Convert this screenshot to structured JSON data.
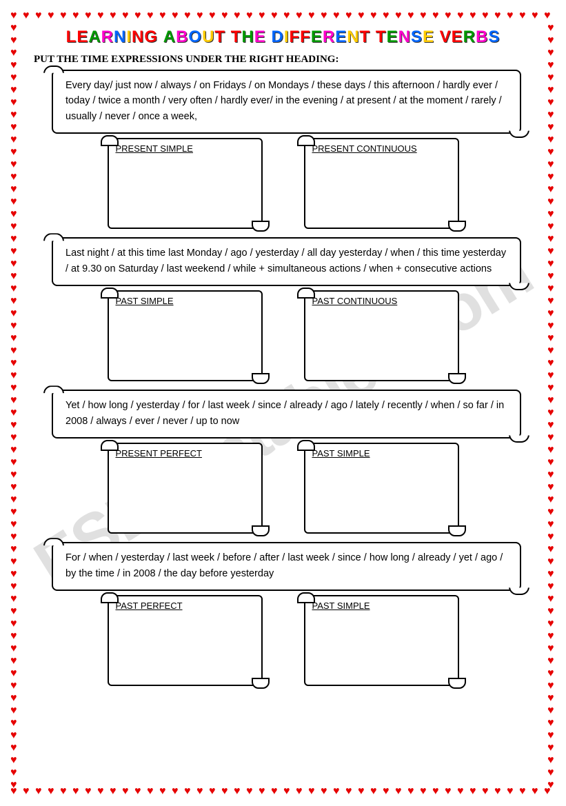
{
  "title_text": "LEARNING ABOUT THE DIFFERENT TENSE VERBS",
  "title_colors": [
    "#ff0000",
    "#ff0000",
    "#009900",
    "#ff00cc",
    "#0066ff",
    "#ffcc00"
  ],
  "instruction": "PUT THE TIME EXPRESSIONS UNDER THE RIGHT HEADING:",
  "watermark": "ESLprintables.com",
  "sections": [
    {
      "banner": "Every day/ just now / always / on Fridays / on Mondays / these days / this afternoon / hardly ever / today /  twice a month / very often / hardly ever/ in the evening / at present / at the moment / rarely / usually / never / once a week,",
      "box_left": "PRESENT SIMPLE",
      "box_right": "PRESENT CONTINUOUS"
    },
    {
      "banner": "Last night / at this time last Monday / ago / yesterday / all day yesterday / when / this time yesterday / at 9.30 on Saturday / last weekend / while + simultaneous actions / when + consecutive actions",
      "box_left": "PAST SIMPLE",
      "box_right": "PAST CONTINUOUS"
    },
    {
      "banner": "Yet / how long / yesterday / for / last week / since / already / ago / lately / recently / when / so far / in 2008 / always / ever / never / up to now",
      "box_left": "PRESENT PERFECT",
      "box_right": "PAST SIMPLE"
    },
    {
      "banner": "For / when / yesterday / last week / before / after / last week / since / how long / already / yet  / ago / by the time / in 2008 / the day before yesterday",
      "box_left": "PAST PERFECT",
      "box_right": "PAST SIMPLE"
    }
  ]
}
